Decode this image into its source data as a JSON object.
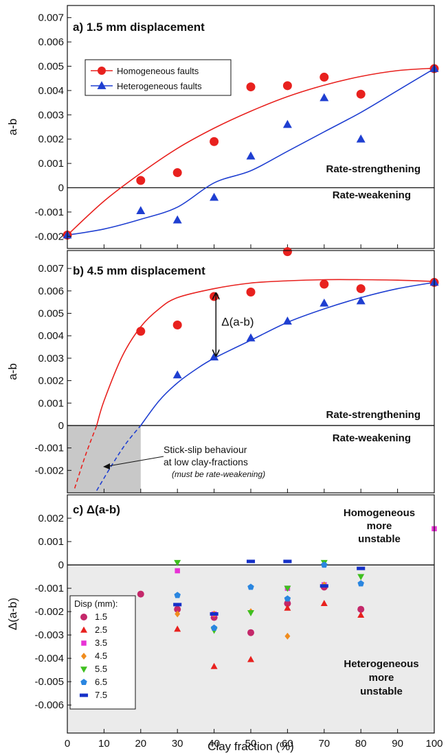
{
  "chart_data": [
    {
      "type": "scatter",
      "title": "a) 1.5 mm displacement",
      "xlabel": "",
      "ylabel": "a-b",
      "xlim": [
        0,
        100
      ],
      "ylim": [
        -0.0025,
        0.0075
      ],
      "yticks": [
        "-0.002",
        "-0.001",
        "0",
        "0.001",
        "0.002",
        "0.003",
        "0.004",
        "0.005",
        "0.006",
        "0.007"
      ],
      "legend": {
        "placement": "top-left",
        "entries": [
          "Homogeneous faults",
          "Heterogeneous faults"
        ]
      },
      "annotations": {
        "upper": "Rate-strengthening",
        "lower": "Rate-weakening"
      },
      "series": [
        {
          "name": "Homogeneous faults",
          "color": "#e8211e",
          "marker": "circle",
          "x": [
            0,
            20,
            30,
            40,
            50,
            60,
            70,
            80,
            100
          ],
          "y": [
            -0.00195,
            0.0003,
            0.00062,
            0.0019,
            0.00415,
            0.0042,
            0.00455,
            0.00385,
            0.0049
          ],
          "fit": {
            "x": [
              0,
              10,
              20,
              30,
              40,
              50,
              60,
              70,
              80,
              90,
              100
            ],
            "y": [
              -0.00195,
              -0.00055,
              0.0006,
              0.00162,
              0.00245,
              0.00315,
              0.00375,
              0.00422,
              0.00458,
              0.00482,
              0.00492
            ]
          }
        },
        {
          "name": "Heterogeneous faults",
          "color": "#1f3fd1",
          "marker": "triangle",
          "x": [
            0,
            20,
            30,
            40,
            50,
            60,
            70,
            80,
            100
          ],
          "y": [
            -0.00195,
            -0.00095,
            -0.00133,
            -0.0004,
            0.0013,
            0.0026,
            0.0037,
            0.002,
            0.0049
          ],
          "fit": {
            "x": [
              0,
              10,
              20,
              30,
              40,
              50,
              60,
              70,
              80,
              90,
              100
            ],
            "y": [
              -0.00195,
              -0.0017,
              -0.0013,
              -0.0008,
              0.0002,
              0.0007,
              0.0015,
              0.0023,
              0.0031,
              0.004,
              0.0049
            ]
          }
        }
      ]
    },
    {
      "type": "scatter",
      "title": "b) 4.5 mm displacement",
      "xlabel": "",
      "ylabel": "a-b",
      "xlim": [
        0,
        100
      ],
      "ylim": [
        -0.003,
        0.0078
      ],
      "yticks": [
        "-0.002",
        "-0.001",
        "0",
        "0.001",
        "0.002",
        "0.003",
        "0.004",
        "0.005",
        "0.006",
        "0.007"
      ],
      "annotations": {
        "upper": "Rate-strengthening",
        "lower": "Rate-weakening",
        "delta": "Δ(a-b)",
        "stick_slip_1": "Stick-slip behaviour",
        "stick_slip_2": "at low clay-fractions",
        "stick_slip_3": "(must be rate-weakening)"
      },
      "shaded_region": {
        "x": [
          0,
          20
        ],
        "y": [
          -0.003,
          0
        ]
      },
      "series": [
        {
          "name": "Homogeneous faults",
          "color": "#e8211e",
          "marker": "circle",
          "x": [
            20,
            30,
            40,
            50,
            60,
            70,
            80,
            100
          ],
          "y": [
            0.0042,
            0.00448,
            0.00575,
            0.00595,
            0.00775,
            0.0063,
            0.0061,
            0.00638
          ],
          "fit": {
            "x": [
              8,
              10,
              15,
              20,
              25,
              30,
              40,
              50,
              60,
              70,
              80,
              90,
              100
            ],
            "y": [
              0,
              0.0011,
              0.0031,
              0.0044,
              0.0052,
              0.0057,
              0.0061,
              0.00635,
              0.00645,
              0.0065,
              0.0065,
              0.00648,
              0.00642
            ]
          },
          "fit_extrapolated": {
            "x": [
              2,
              5,
              8
            ],
            "y": [
              -0.0028,
              -0.0013,
              0
            ]
          }
        },
        {
          "name": "Heterogeneous faults",
          "color": "#1f3fd1",
          "marker": "triangle",
          "x": [
            30,
            40,
            50,
            60,
            70,
            80,
            100
          ],
          "y": [
            0.00225,
            0.00305,
            0.0039,
            0.00465,
            0.00545,
            0.00555,
            0.00638
          ],
          "fit": {
            "x": [
              20,
              25,
              30,
              35,
              40,
              50,
              60,
              70,
              80,
              90,
              100
            ],
            "y": [
              0,
              0.0011,
              0.0019,
              0.0025,
              0.003,
              0.0038,
              0.0046,
              0.0052,
              0.0057,
              0.0061,
              0.00638
            ]
          },
          "fit_extrapolated": {
            "x": [
              8,
              12,
              16,
              20
            ],
            "y": [
              -0.0029,
              -0.0018,
              -0.0008,
              0
            ]
          }
        }
      ]
    },
    {
      "type": "scatter",
      "title": "c) Δ(a-b)",
      "xlabel": "Clay fraction (%)",
      "ylabel": "Δ(a-b)",
      "xlim": [
        0,
        100
      ],
      "ylim": [
        -0.0072,
        0.003
      ],
      "xticks": [
        "0",
        "10",
        "20",
        "30",
        "40",
        "50",
        "60",
        "70",
        "80",
        "90",
        "100"
      ],
      "yticks": [
        "-0.006",
        "-0.005",
        "-0.004",
        "-0.003",
        "-0.002",
        "-0.001",
        "0",
        "0.001",
        "0.002"
      ],
      "shaded_region": {
        "x": [
          0,
          100
        ],
        "y": [
          -0.0072,
          0
        ]
      },
      "annotations": {
        "upper_1": "Homogeneous",
        "upper_2": "more",
        "upper_3": "unstable",
        "lower_1": "Heterogeneous",
        "lower_2": "more",
        "lower_3": "unstable"
      },
      "legend": {
        "title": "Disp (mm):",
        "placement": "bottom-left"
      },
      "series": [
        {
          "name": "1.5",
          "color": "#c4286a",
          "marker": "circle",
          "x": [
            20,
            30,
            40,
            50,
            60,
            70,
            80
          ],
          "y": [
            -0.00125,
            -0.0019,
            -0.00225,
            -0.0029,
            -0.00165,
            -0.00095,
            -0.0019
          ]
        },
        {
          "name": "2.5",
          "color": "#e8211e",
          "marker": "triangle",
          "x": [
            30,
            40,
            50,
            60,
            70,
            80
          ],
          "y": [
            -0.00275,
            -0.00435,
            -0.00405,
            -0.00185,
            -0.00165,
            -0.00215
          ]
        },
        {
          "name": "3.5",
          "color": "#e832d6",
          "marker": "square",
          "x": [
            30,
            40,
            60,
            70,
            100
          ],
          "y": [
            -0.00025,
            -0.0021,
            -0.001,
            -0.00085,
            0.00155
          ]
        },
        {
          "name": "4.5",
          "color": "#f08c1e",
          "marker": "diamond",
          "x": [
            30,
            40,
            50,
            60,
            70
          ],
          "y": [
            -0.0021,
            -0.0021,
            -0.002,
            -0.00305,
            -0.00085
          ]
        },
        {
          "name": "5.5",
          "color": "#3fbf1f",
          "marker": "triangle-down",
          "x": [
            30,
            40,
            50,
            60,
            70,
            80
          ],
          "y": [
            0.0001,
            -0.0028,
            -0.00205,
            -0.001,
            0.0001,
            -0.0005
          ]
        },
        {
          "name": "6.5",
          "color": "#2a86e0",
          "marker": "pentagon",
          "x": [
            30,
            40,
            50,
            60,
            70,
            80
          ],
          "y": [
            -0.0013,
            -0.0027,
            -0.00095,
            -0.00145,
            0.0,
            -0.0008
          ]
        },
        {
          "name": "7.5",
          "color": "#1530c8",
          "marker": "dash",
          "x": [
            30,
            40,
            50,
            60,
            70,
            80
          ],
          "y": [
            -0.0017,
            -0.0021,
            0.00015,
            0.00015,
            -0.0009,
            -0.00015
          ]
        }
      ]
    }
  ]
}
